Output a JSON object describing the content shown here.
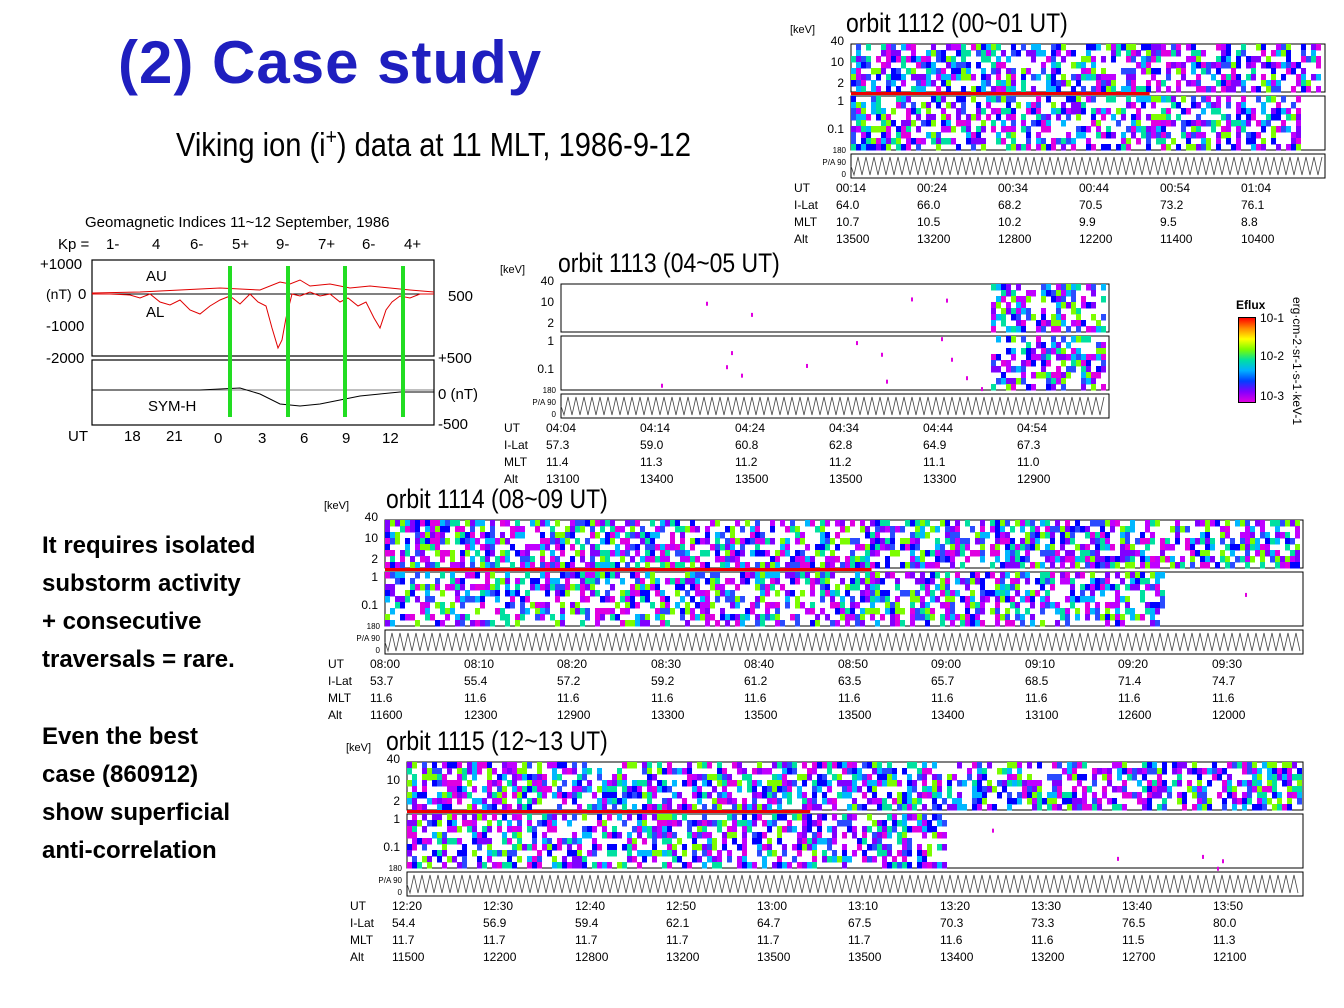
{
  "title": "(2) Case study",
  "subtitle": {
    "pre": "Viking ion (i",
    "sup": "+",
    "post": ") data at 11 MLT,  1986-9-12"
  },
  "notes": {
    "note1": [
      "It requires isolated",
      "substorm activity",
      "+ consecutive",
      "traversals = rare."
    ],
    "note2": [
      "Even the best",
      "case (860912)",
      "show superficial",
      "anti-correlation"
    ]
  },
  "geomag": {
    "title": "Geomagnetic Indices  11~12 September, 1986",
    "kp_label": "Kp =",
    "kp": [
      "1-",
      "4",
      "6-",
      "5+",
      "9-",
      "7+",
      "6-",
      "4+"
    ],
    "left_ticks": [
      "+1000",
      "(nT)",
      "0",
      "-1000",
      "-2000"
    ],
    "right_ticks_top": [
      "500"
    ],
    "right_ticks_bottom": [
      "+500",
      "0 (nT)",
      "-500"
    ],
    "au": "AU",
    "al": "AL",
    "symh": "SYM-H",
    "ut_label": "UT",
    "ut_ticks": [
      "18",
      "21",
      "0",
      "3",
      "6",
      "9",
      "12"
    ]
  },
  "colorbar": {
    "label": "Eflux",
    "ticks": [
      "10-1",
      "10-2",
      "10-3"
    ],
    "units": "erg·cm-2·sr-1·s-1·keV-1"
  },
  "orbits": [
    {
      "title": "orbit 1112 (00~01 UT)",
      "kev": "[keV]",
      "e_ticks": [
        "40",
        "10",
        "2"
      ],
      "p_ticks": [
        "1",
        "0.1"
      ],
      "pa_ticks": [
        "180",
        "P/A 90",
        "0"
      ],
      "row_labels": [
        "UT",
        "I-Lat",
        "MLT",
        "Alt"
      ],
      "cols": [
        [
          "00:14",
          "64.0",
          "10.7",
          "13500"
        ],
        [
          "00:24",
          "66.0",
          "10.5",
          "13200"
        ],
        [
          "00:34",
          "68.2",
          "10.2",
          "12800"
        ],
        [
          "00:44",
          "70.5",
          "9.9",
          "12200"
        ],
        [
          "00:54",
          "73.2",
          "9.5",
          "11400"
        ],
        [
          "01:04",
          "76.1",
          "8.8",
          "10400"
        ]
      ]
    },
    {
      "title": "orbit 1113 (04~05 UT)",
      "kev": "[keV]",
      "e_ticks": [
        "40",
        "10",
        "2"
      ],
      "p_ticks": [
        "1",
        "0.1"
      ],
      "pa_ticks": [
        "180",
        "P/A 90",
        "0"
      ],
      "row_labels": [
        "UT",
        "I-Lat",
        "MLT",
        "Alt"
      ],
      "cols": [
        [
          "04:04",
          "57.3",
          "11.4",
          "13100"
        ],
        [
          "04:14",
          "59.0",
          "11.3",
          "13400"
        ],
        [
          "04:24",
          "60.8",
          "11.2",
          "13500"
        ],
        [
          "04:34",
          "62.8",
          "11.2",
          "13500"
        ],
        [
          "04:44",
          "64.9",
          "11.1",
          "13300"
        ],
        [
          "04:54",
          "67.3",
          "11.0",
          "12900"
        ]
      ]
    },
    {
      "title": "orbit 1114 (08~09 UT)",
      "kev": "[keV]",
      "e_ticks": [
        "40",
        "10",
        "2"
      ],
      "p_ticks": [
        "1",
        "0.1"
      ],
      "pa_ticks": [
        "180",
        "P/A 90",
        "0"
      ],
      "row_labels": [
        "UT",
        "I-Lat",
        "MLT",
        "Alt"
      ],
      "cols": [
        [
          "08:00",
          "53.7",
          "11.6",
          "11600"
        ],
        [
          "08:10",
          "55.4",
          "11.6",
          "12300"
        ],
        [
          "08:20",
          "57.2",
          "11.6",
          "12900"
        ],
        [
          "08:30",
          "59.2",
          "11.6",
          "13300"
        ],
        [
          "08:40",
          "61.2",
          "11.6",
          "13500"
        ],
        [
          "08:50",
          "63.5",
          "11.6",
          "13500"
        ],
        [
          "09:00",
          "65.7",
          "11.6",
          "13400"
        ],
        [
          "09:10",
          "68.5",
          "11.6",
          "13100"
        ],
        [
          "09:20",
          "71.4",
          "11.6",
          "12600"
        ],
        [
          "09:30",
          "74.7",
          "11.6",
          "12000"
        ]
      ]
    },
    {
      "title": "orbit 1115 (12~13 UT)",
      "kev": "[keV]",
      "e_ticks": [
        "40",
        "10",
        "2"
      ],
      "p_ticks": [
        "1",
        "0.1"
      ],
      "pa_ticks": [
        "180",
        "P/A 90",
        "0"
      ],
      "row_labels": [
        "UT",
        "I-Lat",
        "MLT",
        "Alt"
      ],
      "cols": [
        [
          "12:20",
          "54.4",
          "11.7",
          "11500"
        ],
        [
          "12:30",
          "56.9",
          "11.7",
          "12200"
        ],
        [
          "12:40",
          "59.4",
          "11.7",
          "12800"
        ],
        [
          "12:50",
          "62.1",
          "11.7",
          "13200"
        ],
        [
          "13:00",
          "64.7",
          "11.7",
          "13500"
        ],
        [
          "13:10",
          "67.5",
          "11.7",
          "13500"
        ],
        [
          "13:20",
          "70.3",
          "11.6",
          "13400"
        ],
        [
          "13:30",
          "73.3",
          "11.6",
          "13200"
        ],
        [
          "13:40",
          "76.5",
          "11.5",
          "12700"
        ],
        [
          "13:50",
          "80.0",
          "11.3",
          "12100"
        ]
      ]
    }
  ]
}
